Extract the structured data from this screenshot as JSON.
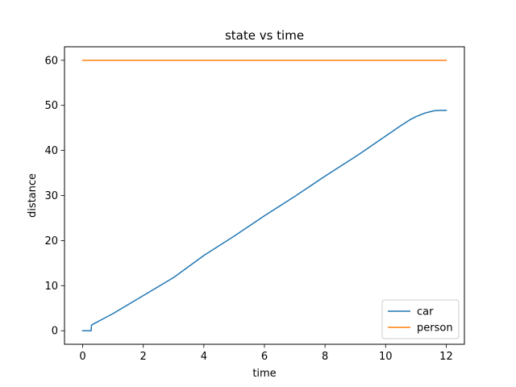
{
  "chart_data": {
    "type": "line",
    "title": "state vs time",
    "xlabel": "time",
    "ylabel": "distance",
    "xlim": [
      -0.6,
      12.6
    ],
    "ylim": [
      -3.0,
      63.0
    ],
    "xticks": [
      0,
      2,
      4,
      6,
      8,
      10,
      12
    ],
    "yticks": [
      0,
      10,
      20,
      30,
      40,
      50,
      60
    ],
    "grid": false,
    "legend_position": "lower right",
    "series": [
      {
        "name": "car",
        "color": "#1f77b4",
        "x": [
          0,
          0.1,
          0.2,
          0.28,
          0.29,
          0.3,
          1,
          2,
          3,
          4,
          5,
          6,
          7,
          8,
          9,
          9.2,
          10,
          10.5,
          10.8,
          11,
          11.3,
          11.6,
          11.8,
          12
        ],
        "y": [
          0,
          0,
          0,
          0,
          1.2,
          1.3,
          3.8,
          7.8,
          11.8,
          16.7,
          21.0,
          25.5,
          29.8,
          34.3,
          38.6,
          39.5,
          43.2,
          45.5,
          46.8,
          47.5,
          48.3,
          48.8,
          48.9,
          48.9
        ]
      },
      {
        "name": "person",
        "color": "#ff7f0e",
        "x": [
          0,
          12
        ],
        "y": [
          60,
          60
        ]
      }
    ]
  }
}
